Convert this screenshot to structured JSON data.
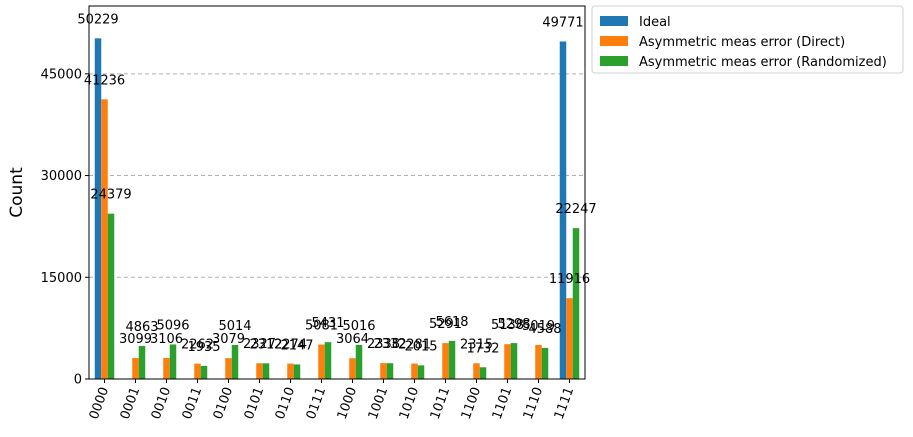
{
  "chart_data": {
    "type": "bar",
    "title": "",
    "xlabel": "",
    "ylabel": "Count",
    "ylim": [
      0,
      55000
    ],
    "yticks": [
      0,
      15000,
      30000,
      45000
    ],
    "ytick_labels": [
      "0",
      "15000",
      "30000",
      "45000"
    ],
    "grid": "y-dashed",
    "legend_position": "outside-top-right",
    "categories": [
      "0000",
      "0001",
      "0010",
      "0011",
      "0100",
      "0101",
      "0110",
      "0111",
      "1000",
      "1001",
      "1010",
      "1011",
      "1100",
      "1101",
      "1110",
      "1111"
    ],
    "series": [
      {
        "name": "Ideal",
        "color": "#1f77b4",
        "values": [
          50229,
          0,
          0,
          0,
          0,
          0,
          0,
          0,
          0,
          0,
          0,
          0,
          0,
          0,
          0,
          49771
        ],
        "labels": [
          "50229",
          "",
          "",
          "",
          "",
          "",
          "",
          "",
          "",
          "",
          "",
          "",
          "",
          "",
          "",
          "49771"
        ]
      },
      {
        "name": "Asymmetric meas error (Direct)",
        "color": "#ff7f0e",
        "values": [
          41236,
          3099,
          3106,
          2262,
          3079,
          2327,
          2274,
          5081,
          3064,
          2338,
          2281,
          5291,
          2315,
          5138,
          5019,
          11916
        ],
        "labels": [
          "41236",
          "3099",
          "3106",
          "2262",
          "3079",
          "2327",
          "2274",
          "5081",
          "3064",
          "2338",
          "2281",
          "5291",
          "2315",
          "5138",
          "5019",
          "11916"
        ]
      },
      {
        "name": "Asymmetric meas error (Randomized)",
        "color": "#2ca02c",
        "values": [
          24379,
          4863,
          5096,
          1935,
          5014,
          2312,
          2147,
          5431,
          5016,
          2332,
          2015,
          5618,
          1732,
          5298,
          4588,
          22247
        ],
        "labels": [
          "24379",
          "4863",
          "5096",
          "1935",
          "5014",
          "2312",
          "2147",
          "5431",
          "5016",
          "2332",
          "2015",
          "5618",
          "1732",
          "5298",
          "4588",
          "22247"
        ]
      }
    ]
  }
}
